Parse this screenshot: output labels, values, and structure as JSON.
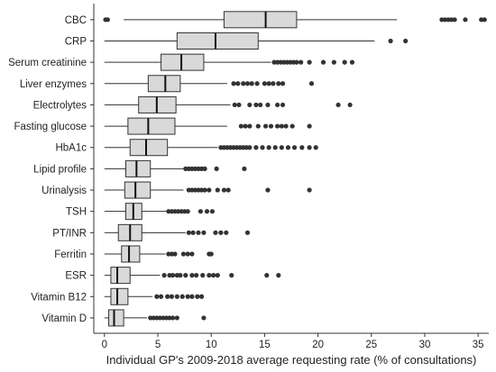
{
  "chart_data": {
    "type": "boxplot",
    "orientation": "horizontal",
    "title": "",
    "xlabel": "Individual GP's 2009-2018 average requesting rate (% of consultations)",
    "ylabel": "",
    "xlim": [
      -1,
      36
    ],
    "xticks": [
      0,
      5,
      10,
      15,
      20,
      25,
      30,
      35
    ],
    "grid": false,
    "legend": "none",
    "colors": {
      "box_fill": "#d9d9d9",
      "box_stroke": "#333333",
      "median": "#111111",
      "whisker": "#333333",
      "outlier": "#333333"
    },
    "categories": [
      "CBC",
      "CRP",
      "Serum creatinine",
      "Liver enzymes",
      "Electrolytes",
      "Fasting glucose",
      "HbA1c",
      "Lipid profile",
      "Urinalysis",
      "TSH",
      "PT/INR",
      "Ferritin",
      "ESR",
      "Vitamin B12",
      "Vitamin D"
    ],
    "boxes": [
      {
        "label": "CBC",
        "whisker_low": 1.8,
        "q1": 11.2,
        "median": 15.1,
        "q3": 18.0,
        "whisker_high": 27.4,
        "outliers": [
          0.1,
          0.3,
          31.6,
          31.9,
          32.2,
          32.5,
          32.8,
          33.8,
          35.3,
          35.6
        ]
      },
      {
        "label": "CRP",
        "whisker_low": 0.0,
        "q1": 6.8,
        "median": 10.4,
        "q3": 14.4,
        "whisker_high": 25.3,
        "outliers": [
          26.8,
          28.2
        ]
      },
      {
        "label": "Serum creatinine",
        "whisker_low": 0.0,
        "q1": 5.3,
        "median": 7.2,
        "q3": 9.3,
        "whisker_high": 15.6,
        "outliers": [
          15.9,
          16.2,
          16.5,
          16.8,
          17.1,
          17.4,
          17.7,
          18.0,
          18.4,
          19.2,
          20.5,
          21.5,
          22.5,
          23.2
        ]
      },
      {
        "label": "Liver enzymes",
        "whisker_low": 0.0,
        "q1": 4.1,
        "median": 5.7,
        "q3": 7.1,
        "whisker_high": 11.5,
        "outliers": [
          12.1,
          12.5,
          13.0,
          13.4,
          13.8,
          14.3,
          15.0,
          15.4,
          15.8,
          16.3,
          16.7,
          19.4
        ]
      },
      {
        "label": "Electrolytes",
        "whisker_low": 0.0,
        "q1": 3.2,
        "median": 4.9,
        "q3": 6.7,
        "whisker_high": 11.8,
        "outliers": [
          12.2,
          12.6,
          13.6,
          14.2,
          14.6,
          15.3,
          16.2,
          16.7,
          21.9,
          23.0
        ]
      },
      {
        "label": "Fasting glucose",
        "whisker_low": 0.0,
        "q1": 2.2,
        "median": 4.1,
        "q3": 6.6,
        "whisker_high": 11.5,
        "outliers": [
          12.8,
          13.2,
          13.6,
          14.4,
          15.1,
          15.6,
          16.2,
          16.6,
          17.0,
          17.6,
          19.2
        ]
      },
      {
        "label": "HbA1c",
        "whisker_low": 0.0,
        "q1": 2.4,
        "median": 3.9,
        "q3": 5.9,
        "whisker_high": 10.6,
        "outliers": [
          10.9,
          11.2,
          11.5,
          11.8,
          12.1,
          12.4,
          12.7,
          13.0,
          13.3,
          13.6,
          14.2,
          14.8,
          15.4,
          16.0,
          16.6,
          17.2,
          17.8,
          18.5,
          19.2,
          19.8
        ]
      },
      {
        "label": "Lipid profile",
        "whisker_low": 0.0,
        "q1": 2.0,
        "median": 3.0,
        "q3": 4.3,
        "whisker_high": 7.4,
        "outliers": [
          7.6,
          7.9,
          8.2,
          8.5,
          8.8,
          9.1,
          9.4,
          10.5,
          13.1
        ]
      },
      {
        "label": "Urinalysis",
        "whisker_low": 0.0,
        "q1": 1.9,
        "median": 2.9,
        "q3": 4.3,
        "whisker_high": 7.4,
        "outliers": [
          7.9,
          8.2,
          8.5,
          8.8,
          9.1,
          9.4,
          9.8,
          10.6,
          11.2,
          11.6,
          15.3,
          19.2
        ]
      },
      {
        "label": "TSH",
        "whisker_low": 0.0,
        "q1": 2.0,
        "median": 2.7,
        "q3": 3.5,
        "whisker_high": 5.8,
        "outliers": [
          6.0,
          6.3,
          6.6,
          6.9,
          7.2,
          7.5,
          7.8,
          9.0,
          9.6,
          10.1
        ]
      },
      {
        "label": "PT/INR",
        "whisker_low": 0.0,
        "q1": 1.3,
        "median": 2.4,
        "q3": 3.5,
        "whisker_high": 7.6,
        "outliers": [
          7.9,
          8.3,
          8.8,
          9.3,
          10.4,
          10.9,
          11.4,
          13.4
        ]
      },
      {
        "label": "Ferritin",
        "whisker_low": 0.0,
        "q1": 1.6,
        "median": 2.3,
        "q3": 3.3,
        "whisker_high": 5.7,
        "outliers": [
          6.0,
          6.3,
          6.6,
          7.4,
          7.8,
          8.2,
          9.8,
          10.0
        ]
      },
      {
        "label": "ESR",
        "whisker_low": 0.0,
        "q1": 0.6,
        "median": 1.2,
        "q3": 2.4,
        "whisker_high": 5.2,
        "outliers": [
          5.6,
          6.1,
          6.4,
          6.8,
          7.1,
          7.6,
          8.2,
          8.6,
          9.2,
          9.8,
          10.2,
          10.6,
          11.9,
          15.2,
          16.3
        ]
      },
      {
        "label": "Vitamin B12",
        "whisker_low": 0.0,
        "q1": 0.6,
        "median": 1.2,
        "q3": 2.2,
        "whisker_high": 4.5,
        "outliers": [
          4.9,
          5.3,
          5.9,
          6.3,
          6.8,
          7.3,
          7.8,
          8.2,
          8.7,
          9.1
        ]
      },
      {
        "label": "Vitamin D",
        "whisker_low": 0.0,
        "q1": 0.4,
        "median": 0.9,
        "q3": 1.8,
        "whisker_high": 4.0,
        "outliers": [
          4.3,
          4.6,
          4.9,
          5.2,
          5.5,
          5.8,
          6.1,
          6.4,
          6.8,
          9.3
        ]
      }
    ]
  }
}
